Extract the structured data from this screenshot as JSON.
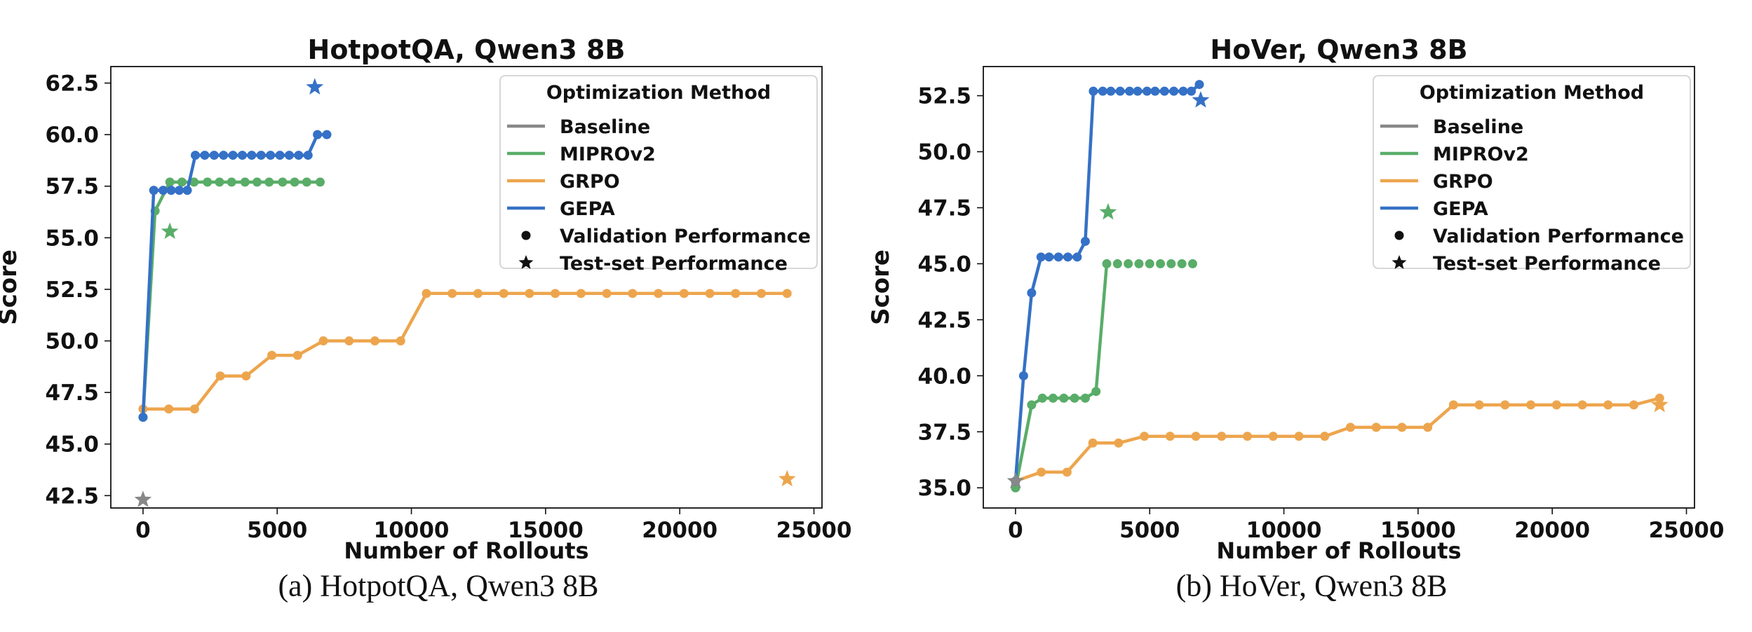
{
  "colors": {
    "baseline": "#888888",
    "miprov2": "#59ad68",
    "grpo": "#eda54d",
    "gepa": "#3571c6"
  },
  "chart_data": [
    {
      "type": "line",
      "title": "HotpotQA, Qwen3 8B",
      "xlabel": "Number of Rollouts",
      "ylabel": "Score",
      "xlim": [
        -1200,
        25300
      ],
      "ylim": [
        41.9,
        63.3
      ],
      "xticks": [
        0,
        5000,
        10000,
        15000,
        20000,
        25000
      ],
      "xtick_labels": [
        "0",
        "5000",
        "10000",
        "15000",
        "20000",
        "25000"
      ],
      "yticks": [
        42.5,
        45.0,
        47.5,
        50.0,
        52.5,
        55.0,
        57.5,
        60.0,
        62.5
      ],
      "ytick_labels": [
        "42.5",
        "45.0",
        "47.5",
        "50.0",
        "52.5",
        "55.0",
        "57.5",
        "60.0",
        "62.5"
      ],
      "caption": "(a) HotpotQA, Qwen3 8B",
      "legend": {
        "title": "Optimization Method",
        "position": "upper-right",
        "entries": [
          {
            "label": "Baseline",
            "kind": "line",
            "color_key": "baseline"
          },
          {
            "label": "MIPROv2",
            "kind": "line",
            "color_key": "miprov2"
          },
          {
            "label": "GRPO",
            "kind": "line",
            "color_key": "grpo"
          },
          {
            "label": "GEPA",
            "kind": "line",
            "color_key": "gepa"
          },
          {
            "label": "Validation Performance",
            "kind": "dot"
          },
          {
            "label": "Test-set Performance",
            "kind": "star"
          }
        ]
      },
      "series": [
        {
          "name": "MIPROv2",
          "color_key": "miprov2",
          "x": [
            0,
            450,
            1000,
            1450,
            1900,
            2400,
            2850,
            3300,
            3800,
            4250,
            4700,
            5200,
            5650,
            6100,
            6600
          ],
          "y": [
            46.3,
            56.3,
            57.7,
            57.7,
            57.7,
            57.7,
            57.7,
            57.7,
            57.7,
            57.7,
            57.7,
            57.7,
            57.7,
            57.7,
            57.7
          ]
        },
        {
          "name": "GRPO",
          "color_key": "grpo",
          "x": [
            0,
            960,
            1920,
            2880,
            3840,
            4800,
            5760,
            6720,
            7680,
            8640,
            9600,
            10560,
            11520,
            12480,
            13440,
            14400,
            15360,
            16320,
            17280,
            18240,
            19200,
            20160,
            21120,
            22080,
            23040,
            24000
          ],
          "y": [
            46.7,
            46.7,
            46.7,
            48.3,
            48.3,
            49.3,
            49.3,
            50.0,
            50.0,
            50.0,
            50.0,
            52.3,
            52.3,
            52.3,
            52.3,
            52.3,
            52.3,
            52.3,
            52.3,
            52.3,
            52.3,
            52.3,
            52.3,
            52.3,
            52.3,
            52.3
          ]
        },
        {
          "name": "GEPA",
          "color_key": "gepa",
          "x": [
            0,
            400,
            750,
            1050,
            1350,
            1650,
            1950,
            2300,
            2650,
            3000,
            3350,
            3700,
            4050,
            4400,
            4750,
            5100,
            5450,
            5800,
            6150,
            6500,
            6850
          ],
          "y": [
            46.3,
            57.3,
            57.3,
            57.3,
            57.3,
            57.3,
            59.0,
            59.0,
            59.0,
            59.0,
            59.0,
            59.0,
            59.0,
            59.0,
            59.0,
            59.0,
            59.0,
            59.0,
            59.0,
            60.0,
            60.0
          ]
        }
      ],
      "test_points": [
        {
          "name": "Baseline",
          "color_key": "baseline",
          "x": 0,
          "y": 42.3
        },
        {
          "name": "MIPROv2",
          "color_key": "miprov2",
          "x": 1000,
          "y": 55.3
        },
        {
          "name": "GRPO",
          "color_key": "grpo",
          "x": 24000,
          "y": 43.3
        },
        {
          "name": "GEPA",
          "color_key": "gepa",
          "x": 6400,
          "y": 62.3
        }
      ]
    },
    {
      "type": "line",
      "title": "HoVer, Qwen3 8B",
      "xlabel": "Number of Rollouts",
      "ylabel": "Score",
      "xlim": [
        -1200,
        25300
      ],
      "ylim": [
        34.1,
        53.8
      ],
      "xticks": [
        0,
        5000,
        10000,
        15000,
        20000,
        25000
      ],
      "xtick_labels": [
        "0",
        "5000",
        "10000",
        "15000",
        "20000",
        "25000"
      ],
      "yticks": [
        35.0,
        37.5,
        40.0,
        42.5,
        45.0,
        47.5,
        50.0,
        52.5
      ],
      "ytick_labels": [
        "35.0",
        "37.5",
        "40.0",
        "42.5",
        "45.0",
        "47.5",
        "50.0",
        "52.5"
      ],
      "caption": "(b) HoVer, Qwen3 8B",
      "legend": {
        "title": "Optimization Method",
        "position": "upper-right",
        "entries": [
          {
            "label": "Baseline",
            "kind": "line",
            "color_key": "baseline"
          },
          {
            "label": "MIPROv2",
            "kind": "line",
            "color_key": "miprov2"
          },
          {
            "label": "GRPO",
            "kind": "line",
            "color_key": "grpo"
          },
          {
            "label": "GEPA",
            "kind": "line",
            "color_key": "gepa"
          },
          {
            "label": "Validation Performance",
            "kind": "dot"
          },
          {
            "label": "Test-set Performance",
            "kind": "star"
          }
        ]
      },
      "series": [
        {
          "name": "MIPROv2",
          "color_key": "miprov2",
          "x": [
            0,
            600,
            1000,
            1400,
            1800,
            2200,
            2600,
            3000,
            3400,
            3800,
            4200,
            4600,
            5000,
            5400,
            5800,
            6200,
            6600
          ],
          "y": [
            35.0,
            38.7,
            39.0,
            39.0,
            39.0,
            39.0,
            39.0,
            39.3,
            45.0,
            45.0,
            45.0,
            45.0,
            45.0,
            45.0,
            45.0,
            45.0,
            45.0
          ],
          "line_points": 9
        },
        {
          "name": "GRPO",
          "color_key": "grpo",
          "x": [
            0,
            960,
            1920,
            2880,
            3840,
            4800,
            5760,
            6720,
            7680,
            8640,
            9600,
            10560,
            11520,
            12480,
            13440,
            14400,
            15360,
            16320,
            17280,
            18240,
            19200,
            20160,
            21120,
            22080,
            23040,
            24000
          ],
          "y": [
            35.3,
            35.7,
            35.7,
            37.0,
            37.0,
            37.3,
            37.3,
            37.3,
            37.3,
            37.3,
            37.3,
            37.3,
            37.3,
            37.7,
            37.7,
            37.7,
            37.7,
            38.7,
            38.7,
            38.7,
            38.7,
            38.7,
            38.7,
            38.7,
            38.7,
            39.0
          ]
        },
        {
          "name": "GEPA",
          "color_key": "gepa",
          "x": [
            0,
            300,
            600,
            950,
            1250,
            1600,
            1950,
            2300,
            2600,
            2900,
            3250,
            3550,
            3900,
            4250,
            4550,
            4900,
            5200,
            5550,
            5900,
            6250,
            6550,
            6850
          ],
          "y": [
            35.3,
            40.0,
            43.7,
            45.3,
            45.3,
            45.3,
            45.3,
            45.3,
            46.0,
            52.7,
            52.7,
            52.7,
            52.7,
            52.7,
            52.7,
            52.7,
            52.7,
            52.7,
            52.7,
            52.7,
            52.7,
            53.0
          ]
        }
      ],
      "test_points": [
        {
          "name": "Baseline",
          "color_key": "baseline",
          "x": 0,
          "y": 35.3
        },
        {
          "name": "MIPROv2",
          "color_key": "miprov2",
          "x": 3450,
          "y": 47.3
        },
        {
          "name": "GRPO",
          "color_key": "grpo",
          "x": 24000,
          "y": 38.7
        },
        {
          "name": "GEPA",
          "color_key": "gepa",
          "x": 6900,
          "y": 52.3
        }
      ]
    }
  ]
}
